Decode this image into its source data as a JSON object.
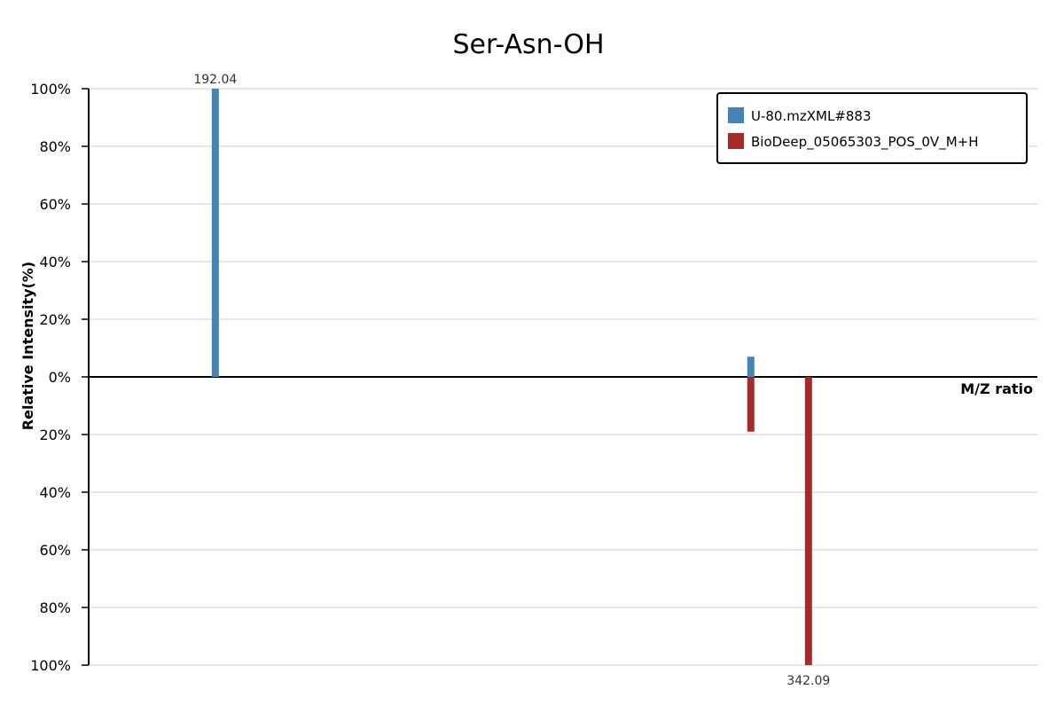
{
  "chart_data": {
    "type": "bar",
    "title": "Ser-Asn-OH",
    "xlabel": "M/Z ratio",
    "ylabel": "Relative Intensity(%)",
    "ylim": [
      -100,
      100
    ],
    "yticks": [
      100,
      80,
      60,
      40,
      20,
      0,
      -20,
      -40,
      -60,
      -80,
      -100
    ],
    "ytick_labels": [
      "100%",
      "80%",
      "60%",
      "40%",
      "20%",
      "0%",
      "20%",
      "40%",
      "60%",
      "80%",
      "100%"
    ],
    "xlim": [
      160,
      400
    ],
    "grid": true,
    "legend_position": "top-right",
    "series": [
      {
        "name": "U-80.mzXML#883",
        "color": "#4682b4",
        "direction": "up",
        "peaks": [
          {
            "mz": 192.04,
            "intensity": 100,
            "label": "192.04"
          },
          {
            "mz": 327.5,
            "intensity": 7,
            "label": ""
          }
        ]
      },
      {
        "name": "BioDeep_05065303_POS_0V_M+H",
        "color": "#a52a2a",
        "direction": "down",
        "peaks": [
          {
            "mz": 327.5,
            "intensity": 19,
            "label": ""
          },
          {
            "mz": 342.09,
            "intensity": 100,
            "label": "342.09"
          }
        ]
      }
    ]
  }
}
